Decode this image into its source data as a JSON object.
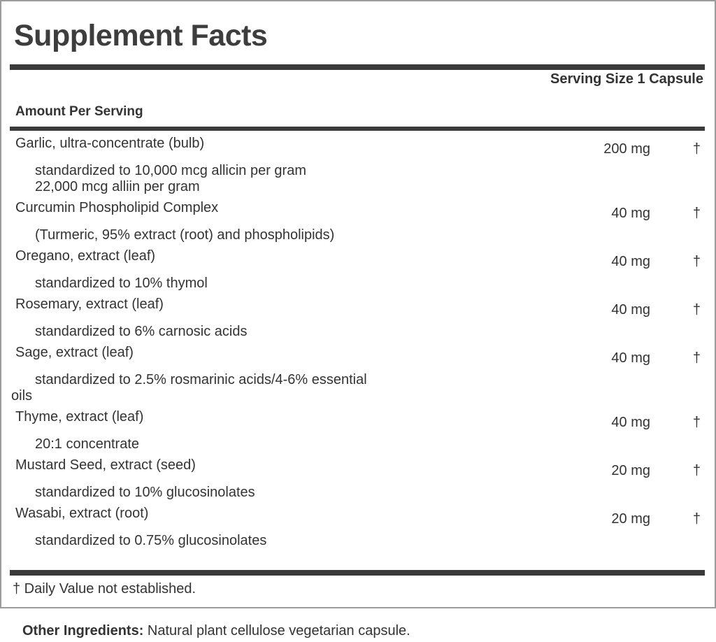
{
  "panel": {
    "title": "Supplement Facts",
    "serving_size": "Serving Size 1 Capsule",
    "amount_per_serving": "Amount Per Serving",
    "rows": [
      {
        "kind": "main",
        "name": "Garlic, ultra-concentrate (bulb)",
        "amount": "200 mg",
        "dv": "†"
      },
      {
        "kind": "sub",
        "first": true,
        "text": "standardized to 10,000 mcg allicin per gram"
      },
      {
        "kind": "sub",
        "text": "22,000 mcg alliin per gram"
      },
      {
        "kind": "main",
        "name": "Curcumin Phospholipid Complex",
        "amount": "40 mg",
        "dv": "†"
      },
      {
        "kind": "sub",
        "first": true,
        "text": "(Turmeric, 95% extract (root) and phospholipids)"
      },
      {
        "kind": "main",
        "name": "Oregano, extract (leaf)",
        "amount": "40 mg",
        "dv": "†"
      },
      {
        "kind": "sub",
        "first": true,
        "text": "standardized to 10% thymol"
      },
      {
        "kind": "main",
        "name": "Rosemary, extract (leaf)",
        "amount": "40 mg",
        "dv": "†"
      },
      {
        "kind": "sub",
        "first": true,
        "text": "standardized to 6% carnosic acids"
      },
      {
        "kind": "main",
        "name": "Sage, extract (leaf)",
        "amount": "40 mg",
        "dv": "†"
      },
      {
        "kind": "sub",
        "first": true,
        "text": "standardized to 2.5% rosmarinic acids/4-6% essential"
      },
      {
        "kind": "sub",
        "wrap": true,
        "text": "oils"
      },
      {
        "kind": "main",
        "name": "Thyme, extract (leaf)",
        "amount": "40 mg",
        "dv": "†"
      },
      {
        "kind": "sub",
        "first": true,
        "text": "20:1 concentrate"
      },
      {
        "kind": "main",
        "name": "Mustard Seed, extract (seed)",
        "amount": "20 mg",
        "dv": "†"
      },
      {
        "kind": "sub",
        "first": true,
        "text": "standardized to 10% glucosinolates"
      },
      {
        "kind": "main",
        "name": "Wasabi, extract (root)",
        "amount": "20 mg",
        "dv": "†"
      },
      {
        "kind": "sub",
        "first": true,
        "text": "standardized to 0.75% glucosinolates"
      }
    ],
    "footnote": "† Daily Value not established."
  },
  "other_ingredients": {
    "label": "Other Ingredients:",
    "text": " Natural plant cellulose vegetarian capsule."
  },
  "colors": {
    "text": "#333333",
    "title": "#3d3d3d",
    "bar": "#3a3a3a",
    "border": "#9c9c9c",
    "background": "#ffffff"
  }
}
